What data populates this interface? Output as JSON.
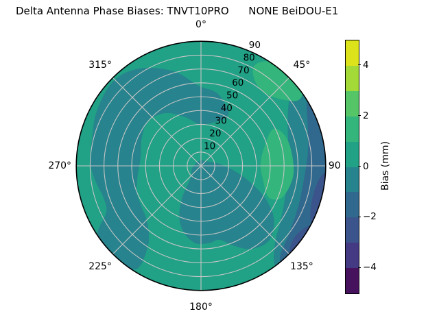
{
  "title": "Delta Antenna Phase Biases: TNVT10PRO      NONE BeiDOU-E1",
  "chart_data": {
    "type": "heatmap",
    "subtype": "polar-filled-contour",
    "title": "Delta Antenna Phase Biases: TNVT10PRO      NONE BeiDOU-E1",
    "angular_axis": {
      "direction": "clockwise",
      "zero_location": "top",
      "tick_labels": [
        {
          "label": "0°",
          "angle": 0,
          "pad": 24
        },
        {
          "label": "45°",
          "angle": 45,
          "pad": 26
        },
        {
          "label": "90",
          "angle": 90,
          "pad": 13
        },
        {
          "label": "135°",
          "angle": 135,
          "pad": 26
        },
        {
          "label": "180°",
          "angle": 180,
          "pad": 24
        },
        {
          "label": "225°",
          "angle": 225,
          "pad": 26
        },
        {
          "label": "270°",
          "angle": 270,
          "pad": 24
        },
        {
          "label": "315°",
          "angle": 315,
          "pad": 26
        }
      ]
    },
    "radial_axis": {
      "min": 0,
      "max": 90,
      "tick_values": [
        10,
        20,
        30,
        40,
        50,
        60,
        70,
        80,
        90
      ],
      "tick_labels": [
        "10",
        "20",
        "30",
        "40",
        "50",
        "60",
        "70",
        "80",
        "90"
      ],
      "label_direction_deg": 24,
      "grid_step": 10
    },
    "grid": {
      "color": "#c6c6c6",
      "spokes_every_deg": 45,
      "edge_color": "#000000"
    },
    "colorbar": {
      "label": "Bias (mm)",
      "min": -5,
      "max": 5,
      "tick_values": [
        4,
        2,
        0,
        -2,
        -4
      ],
      "tick_labels": [
        "4",
        "2",
        "0",
        "−2",
        "−4"
      ],
      "bands_top_to_bottom": [
        {
          "range": "4 to 5",
          "color": "#dce31a"
        },
        {
          "range": "3 to 4",
          "color": "#a3da37"
        },
        {
          "range": "2 to 3",
          "color": "#56c567"
        },
        {
          "range": "1 to 2",
          "color": "#33b57b"
        },
        {
          "range": "0 to 1",
          "color": "#21a186"
        },
        {
          "range": "-1 to 0",
          "color": "#27838d"
        },
        {
          "range": "-2 to -1",
          "color": "#31698e"
        },
        {
          "range": "-3 to -2",
          "color": "#3b548b"
        },
        {
          "range": "-4 to -3",
          "color": "#443983"
        },
        {
          "range": "-5 to -4",
          "color": "#46125e"
        }
      ]
    },
    "base_region": {
      "value_range": "0 to 1",
      "color": "#21a186"
    },
    "regions": [
      {
        "name": "west-north-dark-crescent",
        "value_range": "-1 to 0",
        "color": "#27838d",
        "points": [
          [
            212,
            88
          ],
          [
            224,
            92
          ],
          [
            236,
            90
          ],
          [
            244,
            76
          ],
          [
            252,
            74
          ],
          [
            262,
            77
          ],
          [
            272,
            80
          ],
          [
            284,
            81
          ],
          [
            298,
            85
          ],
          [
            314,
            88
          ],
          [
            328,
            83
          ],
          [
            344,
            71
          ],
          [
            358,
            58
          ],
          [
            12,
            54
          ],
          [
            24,
            46
          ],
          [
            28,
            40
          ],
          [
            14,
            32
          ],
          [
            358,
            30
          ],
          [
            342,
            37
          ],
          [
            326,
            46
          ],
          [
            310,
            50
          ],
          [
            294,
            47
          ],
          [
            278,
            44
          ],
          [
            262,
            46
          ],
          [
            248,
            50
          ],
          [
            236,
            52
          ],
          [
            224,
            56
          ],
          [
            214,
            68
          ]
        ]
      },
      {
        "name": "east-outer-dark-band",
        "value_range": "-1 to 0",
        "color": "#27838d",
        "points": [
          [
            50,
            96
          ],
          [
            70,
            96
          ],
          [
            90,
            96
          ],
          [
            110,
            96
          ],
          [
            130,
            96
          ],
          [
            142,
            96
          ],
          [
            143,
            88
          ],
          [
            136,
            77
          ],
          [
            125,
            70
          ],
          [
            111,
            65
          ],
          [
            96,
            63
          ],
          [
            81,
            64
          ],
          [
            67,
            68
          ],
          [
            56,
            76
          ],
          [
            50,
            86
          ]
        ]
      },
      {
        "name": "center-south-dark-blob",
        "value_range": "-1 to 0",
        "color": "#27838d",
        "points": [
          [
            60,
            6
          ],
          [
            85,
            14
          ],
          [
            100,
            26
          ],
          [
            110,
            40
          ],
          [
            118,
            54
          ],
          [
            127,
            66
          ],
          [
            138,
            73
          ],
          [
            149,
            70
          ],
          [
            158,
            62
          ],
          [
            166,
            55
          ],
          [
            174,
            56
          ],
          [
            184,
            56
          ],
          [
            194,
            50
          ],
          [
            203,
            40
          ],
          [
            211,
            26
          ],
          [
            219,
            12
          ],
          [
            250,
            7
          ],
          [
            300,
            4
          ],
          [
            0,
            4
          ]
        ]
      },
      {
        "name": "northeast-rim-green-patch",
        "value_range": "1 to 2",
        "color": "#33b57b",
        "points": [
          [
            28,
            82
          ],
          [
            33,
            90
          ],
          [
            42,
            95
          ],
          [
            52,
            93
          ],
          [
            56,
            85
          ],
          [
            50,
            75
          ],
          [
            41,
            70
          ],
          [
            32,
            73
          ]
        ]
      },
      {
        "name": "east-inner-green-blob",
        "value_range": "1 to 2",
        "color": "#33b57b",
        "points": [
          [
            63,
            58
          ],
          [
            73,
            48
          ],
          [
            88,
            43
          ],
          [
            103,
            46
          ],
          [
            115,
            54
          ],
          [
            111,
            63
          ],
          [
            96,
            67
          ],
          [
            80,
            66
          ],
          [
            69,
            64
          ]
        ]
      },
      {
        "name": "east-rim-blue-band",
        "value_range": "-2 to -1",
        "color": "#31698e",
        "points": [
          [
            56,
            96
          ],
          [
            72,
            96
          ],
          [
            92,
            96
          ],
          [
            112,
            96
          ],
          [
            132,
            96
          ],
          [
            141,
            95
          ],
          [
            139,
            87
          ],
          [
            127,
            80
          ],
          [
            112,
            76
          ],
          [
            96,
            75
          ],
          [
            82,
            78
          ],
          [
            68,
            83
          ],
          [
            59,
            89
          ]
        ]
      },
      {
        "name": "east-rim-darkblue-patch",
        "value_range": "-3 to -2",
        "color": "#3b548b",
        "points": [
          [
            95,
            96
          ],
          [
            106,
            96
          ],
          [
            116,
            94
          ],
          [
            117,
            89
          ],
          [
            108,
            84
          ],
          [
            98,
            85
          ],
          [
            93,
            90
          ]
        ]
      },
      {
        "name": "southeast-rim-darkblue-patch",
        "value_range": "-3 to -2",
        "color": "#3b548b",
        "points": [
          [
            122,
            96
          ],
          [
            132,
            95
          ],
          [
            134,
            89
          ],
          [
            127,
            85
          ],
          [
            120,
            88
          ],
          [
            118,
            93
          ]
        ]
      }
    ]
  }
}
